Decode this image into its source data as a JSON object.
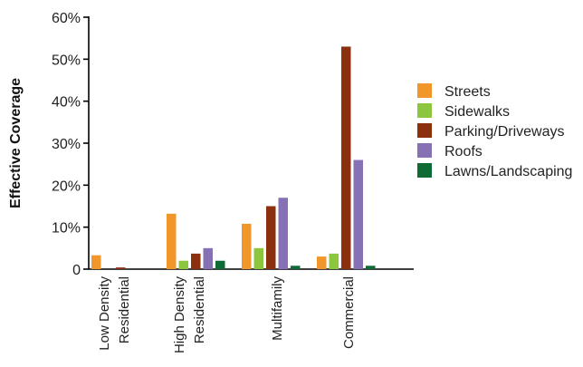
{
  "chart_data": {
    "type": "bar",
    "title": "",
    "xlabel": "",
    "ylabel": "Effective Coverage",
    "ylim": [
      0,
      60
    ],
    "y_ticks": [
      {
        "value": 0,
        "label": "0"
      },
      {
        "value": 10,
        "label": "10%"
      },
      {
        "value": 20,
        "label": "20%"
      },
      {
        "value": 30,
        "label": "30%"
      },
      {
        "value": 40,
        "label": "40%"
      },
      {
        "value": 50,
        "label": "50%"
      },
      {
        "value": 60,
        "label": "60%"
      }
    ],
    "categories": [
      [
        "Low Density",
        "Residential"
      ],
      [
        "High Density",
        "Residential"
      ],
      [
        "Multifamily"
      ],
      [
        "Commercial"
      ]
    ],
    "grid": false,
    "legend_position": "right",
    "series": [
      {
        "name": "Streets",
        "color": "#F0962A",
        "values": [
          3.3,
          13.2,
          10.8,
          3.0
        ]
      },
      {
        "name": "Sidewalks",
        "color": "#8CC63F",
        "values": [
          0,
          2.0,
          5.0,
          3.7
        ]
      },
      {
        "name": "Parking/Driveways",
        "color": "#8B2F0E",
        "values": [
          0.4,
          3.7,
          15.0,
          53.0
        ]
      },
      {
        "name": "Roofs",
        "color": "#8671B5",
        "values": [
          0,
          5.0,
          17.0,
          26.0
        ]
      },
      {
        "name": "Lawns/Landscaping",
        "color": "#0E6B35",
        "values": [
          0,
          2.0,
          0.8,
          0.8
        ]
      }
    ]
  }
}
